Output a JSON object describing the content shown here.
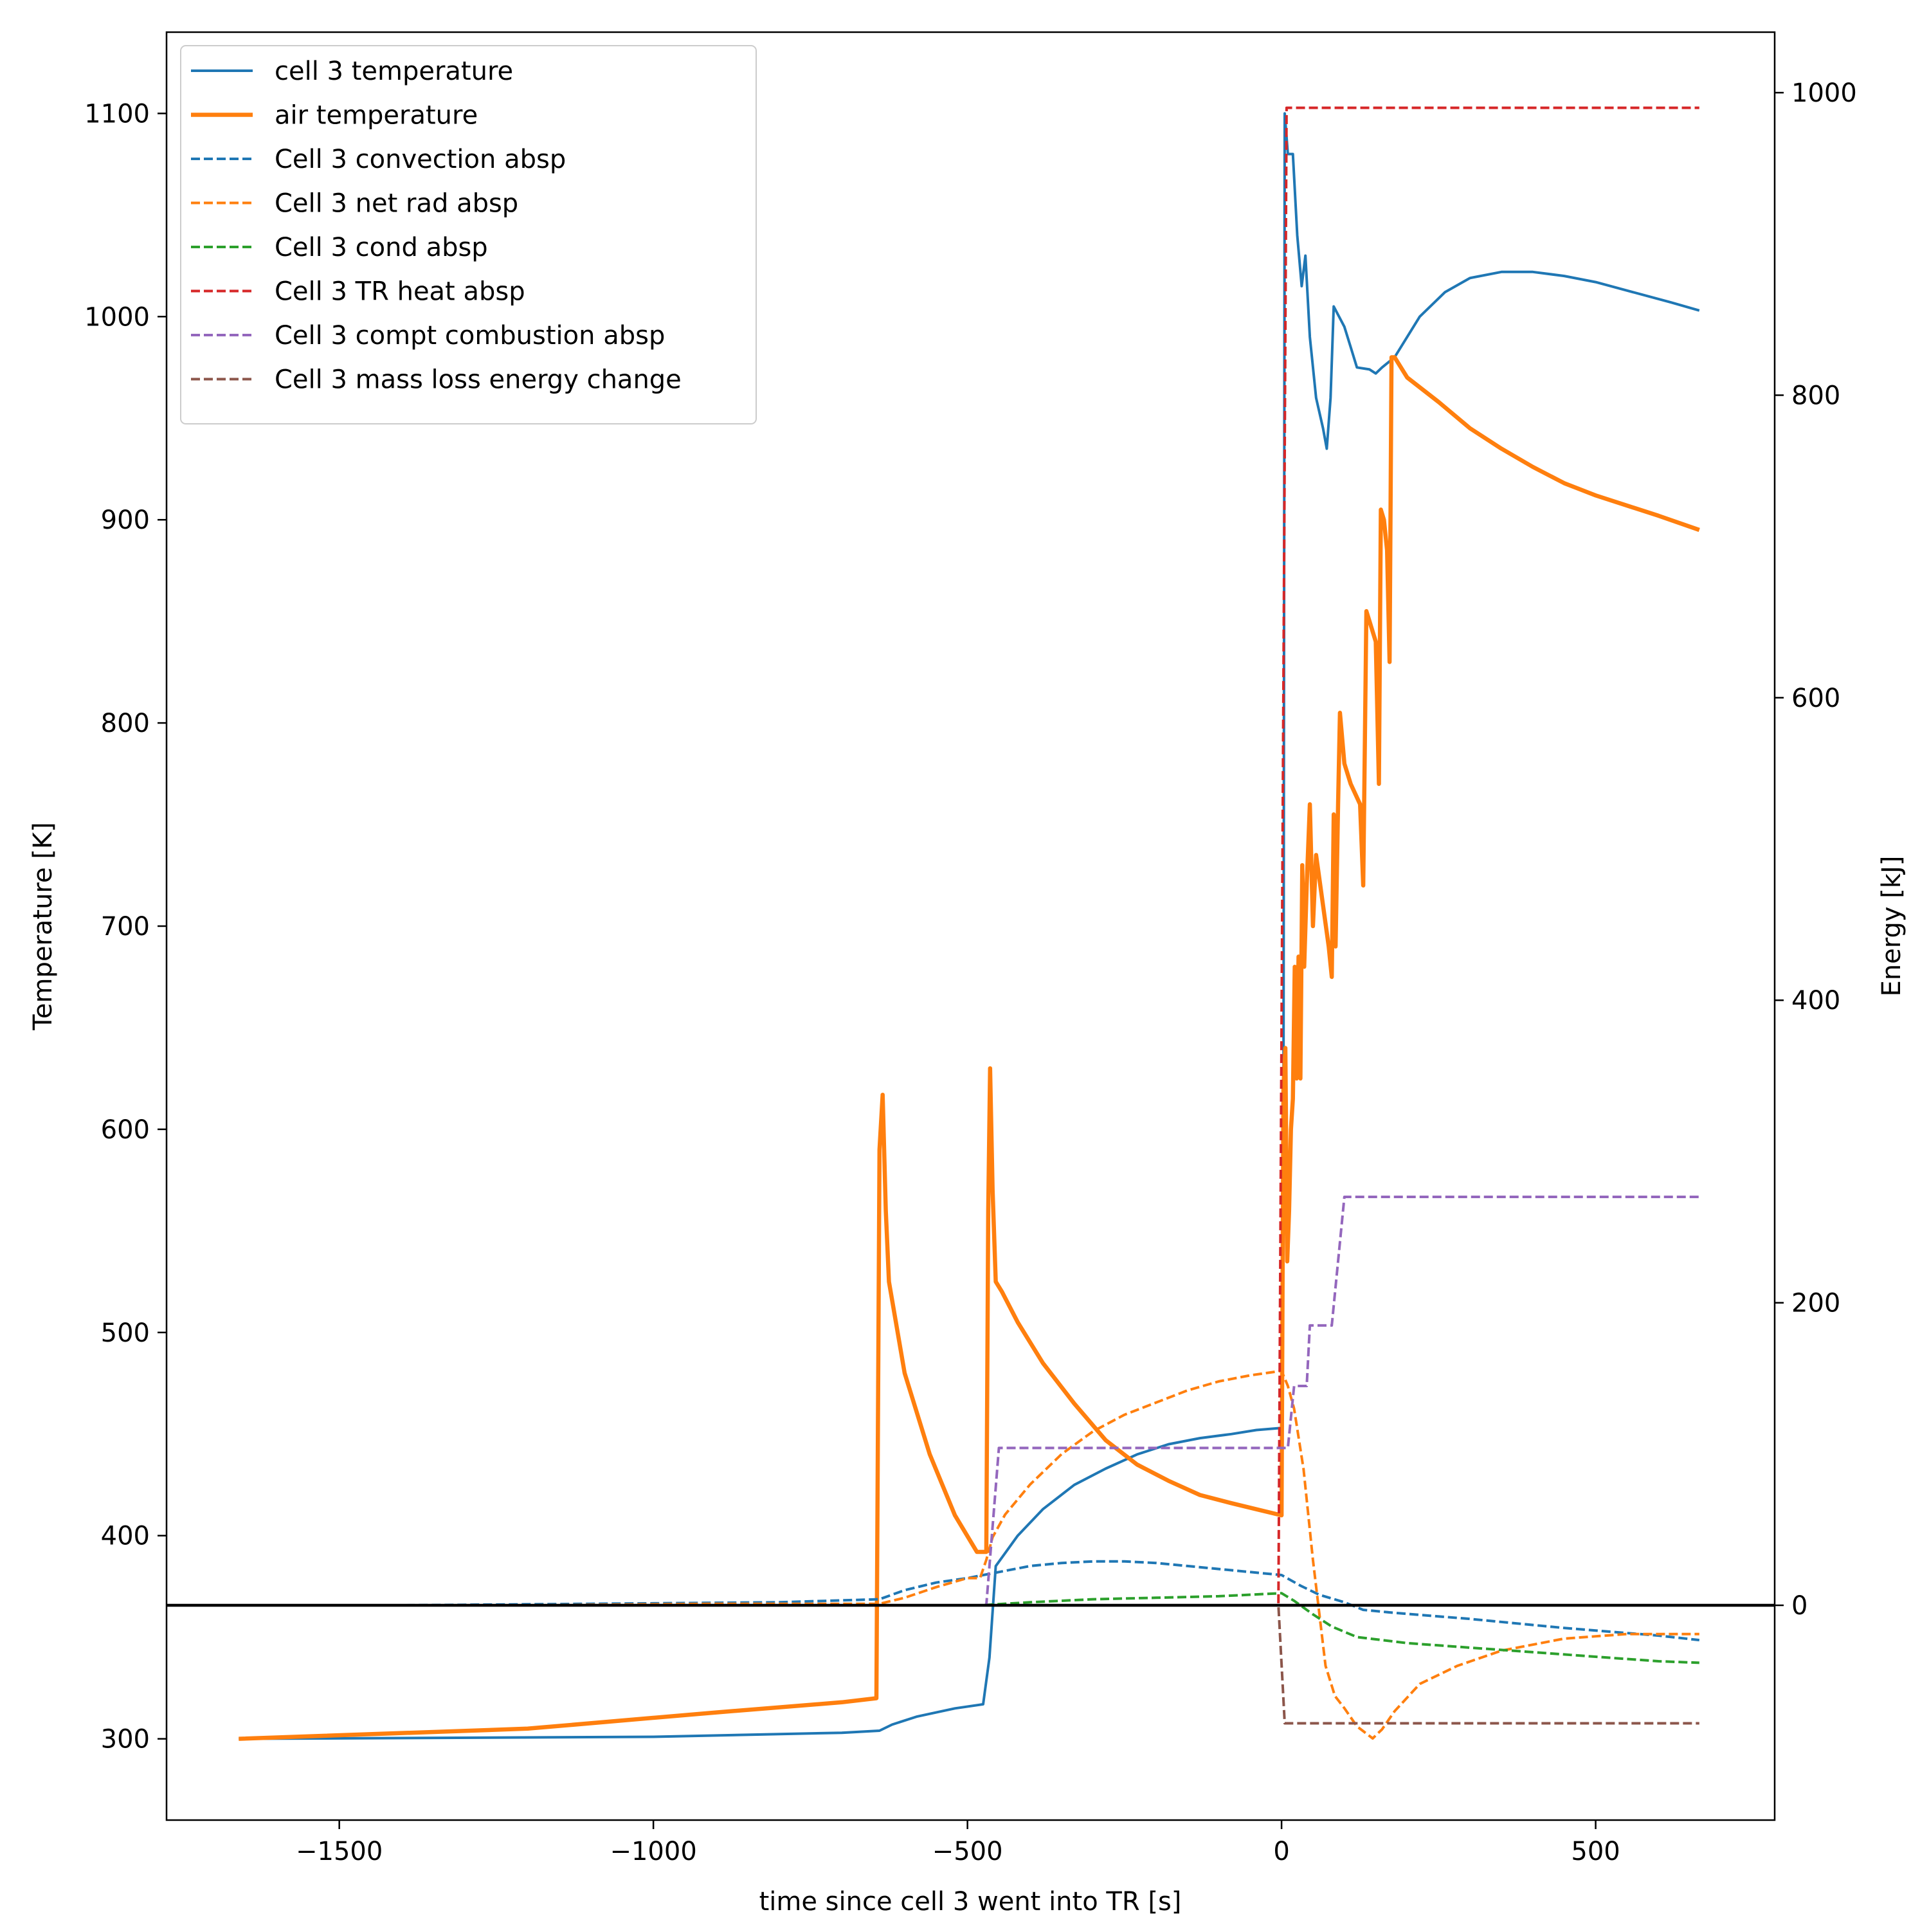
{
  "chart_data": {
    "type": "line",
    "xlabel": "time since cell 3 went into TR [s]",
    "ylabel_left": "Temperature [K]",
    "ylabel_right": "Energy [kJ]",
    "xlim": [
      -1775,
      785
    ],
    "ylim_left": [
      260,
      1140
    ],
    "ylim_right": [
      -142,
      1040
    ],
    "x_ticks": [
      -1500,
      -1000,
      -500,
      0,
      500
    ],
    "x_tick_labels": [
      "−1500",
      "−1000",
      "−500",
      "0",
      "500"
    ],
    "y_ticks_left": [
      300,
      400,
      500,
      600,
      700,
      800,
      900,
      1000,
      1100
    ],
    "y_tick_labels_left": [
      "300",
      "400",
      "500",
      "600",
      "700",
      "800",
      "900",
      "1000",
      "1100"
    ],
    "y_ticks_right": [
      0,
      200,
      400,
      600,
      800,
      1000
    ],
    "y_tick_labels_right": [
      "0",
      "200",
      "400",
      "600",
      "800",
      "1000"
    ],
    "zero_line_right": 0,
    "grid": false,
    "legend_position": "top-left",
    "series": [
      {
        "name": "cell 3 temperature",
        "axis": "left",
        "color": "#1f77b4",
        "dash": "solid",
        "width": "normal",
        "points": [
          [
            -1660,
            300
          ],
          [
            -1000,
            301
          ],
          [
            -700,
            303
          ],
          [
            -640,
            304
          ],
          [
            -620,
            307
          ],
          [
            -580,
            311
          ],
          [
            -520,
            315
          ],
          [
            -475,
            317
          ],
          [
            -465,
            340
          ],
          [
            -455,
            385
          ],
          [
            -420,
            400
          ],
          [
            -380,
            413
          ],
          [
            -330,
            425
          ],
          [
            -280,
            433
          ],
          [
            -230,
            440
          ],
          [
            -180,
            445
          ],
          [
            -130,
            448
          ],
          [
            -80,
            450
          ],
          [
            -40,
            452
          ],
          [
            0,
            453
          ],
          [
            3,
            600
          ],
          [
            5,
            1100
          ],
          [
            10,
            1080
          ],
          [
            18,
            1080
          ],
          [
            25,
            1040
          ],
          [
            32,
            1015
          ],
          [
            38,
            1030
          ],
          [
            45,
            990
          ],
          [
            55,
            960
          ],
          [
            66,
            945
          ],
          [
            72,
            935
          ],
          [
            78,
            960
          ],
          [
            83,
            1005
          ],
          [
            100,
            995
          ],
          [
            110,
            985
          ],
          [
            120,
            975
          ],
          [
            140,
            974
          ],
          [
            150,
            972
          ],
          [
            160,
            975
          ],
          [
            180,
            980
          ],
          [
            220,
            1000
          ],
          [
            260,
            1012
          ],
          [
            300,
            1019
          ],
          [
            350,
            1022
          ],
          [
            400,
            1022
          ],
          [
            450,
            1020
          ],
          [
            500,
            1017
          ],
          [
            560,
            1012
          ],
          [
            620,
            1007
          ],
          [
            665,
            1003
          ]
        ]
      },
      {
        "name": "air temperature",
        "axis": "left",
        "color": "#ff7f0e",
        "dash": "solid",
        "width": "thick",
        "points": [
          [
            -1660,
            300
          ],
          [
            -1200,
            305
          ],
          [
            -900,
            313
          ],
          [
            -700,
            318
          ],
          [
            -645,
            320
          ],
          [
            -640,
            590
          ],
          [
            -635,
            617
          ],
          [
            -630,
            560
          ],
          [
            -625,
            525
          ],
          [
            -600,
            480
          ],
          [
            -560,
            440
          ],
          [
            -520,
            410
          ],
          [
            -485,
            392
          ],
          [
            -470,
            392
          ],
          [
            -467,
            560
          ],
          [
            -464,
            630
          ],
          [
            -460,
            570
          ],
          [
            -455,
            525
          ],
          [
            -445,
            520
          ],
          [
            -420,
            505
          ],
          [
            -380,
            485
          ],
          [
            -330,
            465
          ],
          [
            -280,
            447
          ],
          [
            -230,
            435
          ],
          [
            -180,
            427
          ],
          [
            -130,
            420
          ],
          [
            -80,
            416
          ],
          [
            -40,
            413
          ],
          [
            0,
            410
          ],
          [
            3,
            620
          ],
          [
            6,
            640
          ],
          [
            9,
            535
          ],
          [
            12,
            560
          ],
          [
            15,
            600
          ],
          [
            18,
            615
          ],
          [
            21,
            680
          ],
          [
            24,
            625
          ],
          [
            27,
            685
          ],
          [
            30,
            625
          ],
          [
            33,
            730
          ],
          [
            36,
            680
          ],
          [
            40,
            720
          ],
          [
            45,
            760
          ],
          [
            50,
            700
          ],
          [
            55,
            735
          ],
          [
            75,
            690
          ],
          [
            80,
            675
          ],
          [
            83,
            755
          ],
          [
            86,
            690
          ],
          [
            90,
            760
          ],
          [
            93,
            805
          ],
          [
            100,
            780
          ],
          [
            110,
            770
          ],
          [
            125,
            760
          ],
          [
            130,
            720
          ],
          [
            135,
            855
          ],
          [
            140,
            850
          ],
          [
            150,
            840
          ],
          [
            155,
            770
          ],
          [
            158,
            905
          ],
          [
            163,
            900
          ],
          [
            168,
            885
          ],
          [
            172,
            830
          ],
          [
            175,
            980
          ],
          [
            180,
            980
          ],
          [
            200,
            970
          ],
          [
            250,
            958
          ],
          [
            300,
            945
          ],
          [
            350,
            935
          ],
          [
            400,
            926
          ],
          [
            450,
            918
          ],
          [
            500,
            912
          ],
          [
            550,
            907
          ],
          [
            600,
            902
          ],
          [
            665,
            895
          ]
        ]
      },
      {
        "name": "Cell 3 convection absp",
        "axis": "right",
        "color": "#1f77b4",
        "dash": "dashed",
        "width": "normal",
        "points": [
          [
            -1660,
            0
          ],
          [
            -1400,
            0
          ],
          [
            -1100,
            1
          ],
          [
            -800,
            2
          ],
          [
            -640,
            4
          ],
          [
            -600,
            10
          ],
          [
            -550,
            15
          ],
          [
            -500,
            18
          ],
          [
            -450,
            22
          ],
          [
            -400,
            26
          ],
          [
            -350,
            28
          ],
          [
            -300,
            29
          ],
          [
            -250,
            29
          ],
          [
            -200,
            28
          ],
          [
            -150,
            26
          ],
          [
            -100,
            24
          ],
          [
            -50,
            22
          ],
          [
            0,
            20
          ],
          [
            30,
            13
          ],
          [
            60,
            7
          ],
          [
            100,
            2
          ],
          [
            130,
            -3
          ],
          [
            180,
            -5
          ],
          [
            300,
            -9
          ],
          [
            450,
            -15
          ],
          [
            600,
            -20
          ],
          [
            665,
            -23
          ]
        ]
      },
      {
        "name": "Cell 3 net rad absp",
        "axis": "right",
        "color": "#ff7f0e",
        "dash": "dashed",
        "width": "normal",
        "points": [
          [
            -1660,
            0
          ],
          [
            -1200,
            0
          ],
          [
            -900,
            1
          ],
          [
            -640,
            1
          ],
          [
            -600,
            5
          ],
          [
            -550,
            12
          ],
          [
            -500,
            18
          ],
          [
            -480,
            18
          ],
          [
            -470,
            30
          ],
          [
            -460,
            45
          ],
          [
            -440,
            60
          ],
          [
            -400,
            80
          ],
          [
            -350,
            100
          ],
          [
            -300,
            115
          ],
          [
            -250,
            126
          ],
          [
            -200,
            134
          ],
          [
            -150,
            142
          ],
          [
            -100,
            148
          ],
          [
            -50,
            152
          ],
          [
            0,
            155
          ],
          [
            10,
            145
          ],
          [
            20,
            130
          ],
          [
            35,
            90
          ],
          [
            50,
            30
          ],
          [
            70,
            -40
          ],
          [
            85,
            -60
          ],
          [
            100,
            -68
          ],
          [
            120,
            -80
          ],
          [
            145,
            -88
          ],
          [
            160,
            -82
          ],
          [
            180,
            -70
          ],
          [
            220,
            -52
          ],
          [
            280,
            -40
          ],
          [
            350,
            -30
          ],
          [
            450,
            -22
          ],
          [
            550,
            -19
          ],
          [
            665,
            -19
          ]
        ]
      },
      {
        "name": "Cell 3 cond absp",
        "axis": "right",
        "color": "#2ca02c",
        "dash": "dashed",
        "width": "normal",
        "points": [
          [
            -1660,
            0
          ],
          [
            -1000,
            0
          ],
          [
            -480,
            0
          ],
          [
            -400,
            2
          ],
          [
            -300,
            4
          ],
          [
            -200,
            5
          ],
          [
            -100,
            6
          ],
          [
            0,
            8
          ],
          [
            20,
            3
          ],
          [
            50,
            -6
          ],
          [
            80,
            -14
          ],
          [
            120,
            -21
          ],
          [
            200,
            -25
          ],
          [
            300,
            -28
          ],
          [
            400,
            -31
          ],
          [
            500,
            -34
          ],
          [
            600,
            -37
          ],
          [
            665,
            -38
          ]
        ]
      },
      {
        "name": "Cell 3 TR heat absp",
        "axis": "right",
        "color": "#d62728",
        "dash": "dashed",
        "width": "normal",
        "points": [
          [
            -1660,
            0
          ],
          [
            -5,
            0
          ],
          [
            8,
            990
          ],
          [
            665,
            990
          ]
        ]
      },
      {
        "name": "Cell 3 compt combustion absp",
        "axis": "right",
        "color": "#9467bd",
        "dash": "dashed",
        "width": "normal",
        "points": [
          [
            -1660,
            0
          ],
          [
            -470,
            0
          ],
          [
            -450,
            104
          ],
          [
            0,
            104
          ],
          [
            10,
            104
          ],
          [
            20,
            145
          ],
          [
            40,
            145
          ],
          [
            45,
            185
          ],
          [
            80,
            185
          ],
          [
            100,
            270
          ],
          [
            665,
            270
          ]
        ]
      },
      {
        "name": "Cell 3 mass loss energy change",
        "axis": "right",
        "color": "#8c564b",
        "dash": "dashed",
        "width": "normal",
        "points": [
          [
            -1660,
            0
          ],
          [
            -5,
            0
          ],
          [
            5,
            -78
          ],
          [
            665,
            -78
          ]
        ]
      }
    ]
  }
}
